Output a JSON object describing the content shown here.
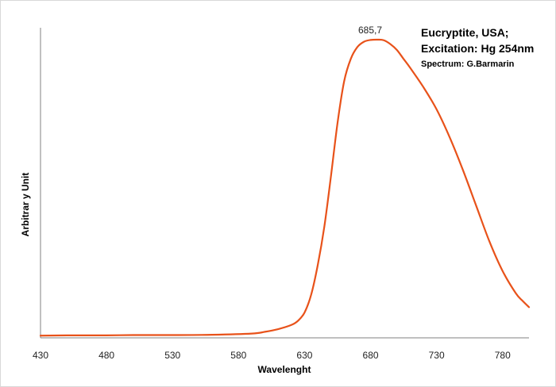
{
  "chart_data": {
    "type": "line",
    "title_lines": [
      "Eucryptite, USA;",
      "Excitation: Hg 254nm"
    ],
    "credit": "Spectrum: G.Barmarin",
    "xlabel": "Wavelenght",
    "ylabel": "Arbitrar y Unit",
    "xlim": [
      430,
      800
    ],
    "ylim": [
      0,
      100
    ],
    "x_ticks": [
      430,
      480,
      530,
      580,
      630,
      680,
      730,
      780
    ],
    "grid": false,
    "legend": "none",
    "peak_annotation": {
      "label": "685,7",
      "x": 685.7,
      "y": 100
    },
    "series": [
      {
        "color": "#e8521a",
        "x": [
          430,
          450,
          480,
          500,
          530,
          560,
          590,
          600,
          610,
          620,
          625,
          630,
          635,
          640,
          645,
          650,
          655,
          660,
          665,
          670,
          675,
          680,
          685.7,
          690,
          695,
          700,
          705,
          710,
          720,
          730,
          740,
          750,
          760,
          770,
          780,
          790,
          795,
          800
        ],
        "y": [
          0.2,
          0.3,
          0.3,
          0.4,
          0.4,
          0.5,
          0.9,
          1.5,
          2.4,
          3.8,
          5.2,
          8.0,
          14.0,
          24.0,
          37.0,
          54.0,
          72.0,
          86.0,
          93.5,
          97.5,
          99.3,
          99.9,
          100,
          99.8,
          98.5,
          96.5,
          93.5,
          90.5,
          84.0,
          76.5,
          67.0,
          56.0,
          44.0,
          32.0,
          22.0,
          14.5,
          12.0,
          9.8
        ]
      }
    ]
  }
}
